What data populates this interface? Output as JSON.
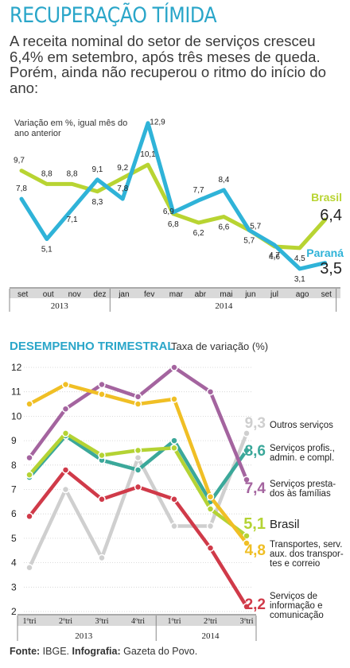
{
  "header": {
    "title": "RECUPERAÇÃO TÍMIDA",
    "subtitle": "A receita nominal do setor de serviços cresceu 6,4% em setembro, após três meses de queda. Porém, ainda não recuperou o ritmo do início do ano:"
  },
  "footer": {
    "source_label": "Fonte:",
    "source_value": "IBGE.",
    "graphics_label": "Infografia:",
    "graphics_value": "Gazeta do Povo."
  },
  "colors": {
    "brasil": "#b8d432",
    "parana": "#2fb3d8",
    "title": "#2aa6c9",
    "axis_band": "#d9d9d9",
    "outros": "#cfcfcf",
    "profis": "#3ba89a",
    "familias": "#a4649f",
    "transportes": "#f0bf25",
    "informacao": "#d03a49",
    "brasil_tri": "#b4d334"
  },
  "chart_data": [
    {
      "type": "line",
      "title": "",
      "ylabel": "Variação em %, igual mês do ano anterior",
      "x": [
        "set",
        "out",
        "nov",
        "dez",
        "jan",
        "fev",
        "mar",
        "abr",
        "mai",
        "jun",
        "jul",
        "ago",
        "set"
      ],
      "year_groups": [
        {
          "label": "2013",
          "from": 0,
          "to": 3
        },
        {
          "label": "2014",
          "from": 4,
          "to": 12
        }
      ],
      "series": [
        {
          "name": "Brasil",
          "values": [
            9.7,
            8.8,
            8.8,
            8.3,
            9.2,
            10.1,
            6.8,
            6.2,
            6.6,
            5.7,
            4.6,
            4.5,
            6.4
          ],
          "labels": [
            "9,7",
            "8,8",
            "8,8",
            "8,3",
            "9,2",
            "10,1",
            "6,8",
            "6,2",
            "6,6",
            "5,7",
            "4,6",
            "4,5",
            "6,4"
          ]
        },
        {
          "name": "Paraná",
          "values": [
            7.8,
            5.1,
            7.1,
            9.1,
            7.8,
            12.9,
            6.9,
            7.7,
            8.4,
            5.7,
            4.7,
            3.1,
            3.5
          ],
          "labels": [
            "7,8",
            "5,1",
            "7,1",
            "9,1",
            "7,8",
            "12,9",
            "6,9",
            "7,7",
            "8,4",
            "5,7",
            "4,7",
            "3,1",
            "3,5"
          ]
        }
      ]
    },
    {
      "type": "line",
      "title": "DESEMPENHO TRIMESTRAL",
      "subtitle": "Taxa de variação (%)",
      "x": [
        "1ºtri",
        "2ºtri",
        "3ºtri",
        "4ºtri",
        "1ºtri",
        "2ºtri",
        "3ºtri"
      ],
      "year_groups": [
        {
          "label": "2013",
          "from": 0,
          "to": 3
        },
        {
          "label": "2014",
          "from": 4,
          "to": 6
        }
      ],
      "yticks": [
        2,
        3,
        4,
        5,
        6,
        7,
        8,
        9,
        10,
        11,
        12
      ],
      "ylim": [
        2,
        12
      ],
      "series": [
        {
          "name": "Outros serviços",
          "values": [
            3.8,
            7.0,
            4.2,
            8.3,
            5.5,
            5.5,
            9.3
          ],
          "end_label": "9,3"
        },
        {
          "name": "Serviços profis., admin. e compl.",
          "values": [
            7.5,
            9.2,
            8.2,
            7.8,
            9.0,
            6.5,
            8.6
          ],
          "end_label": "8,6"
        },
        {
          "name": "Serviços prestados às famílias",
          "values": [
            8.3,
            10.3,
            11.3,
            10.8,
            12.0,
            11.0,
            7.4
          ],
          "end_label": "7,4"
        },
        {
          "name": "Brasil",
          "values": [
            7.6,
            9.3,
            8.4,
            8.6,
            8.7,
            6.2,
            5.1
          ],
          "end_label": "5,1"
        },
        {
          "name": "Transportes, serv. aux. dos transportes e correio",
          "values": [
            10.5,
            11.3,
            10.9,
            10.5,
            10.7,
            6.7,
            4.8
          ],
          "end_label": "4,8"
        },
        {
          "name": "Serviços de informação e comunicação",
          "values": [
            5.9,
            7.8,
            6.6,
            7.1,
            6.6,
            4.6,
            2.2
          ],
          "end_label": "2,2"
        }
      ]
    }
  ]
}
